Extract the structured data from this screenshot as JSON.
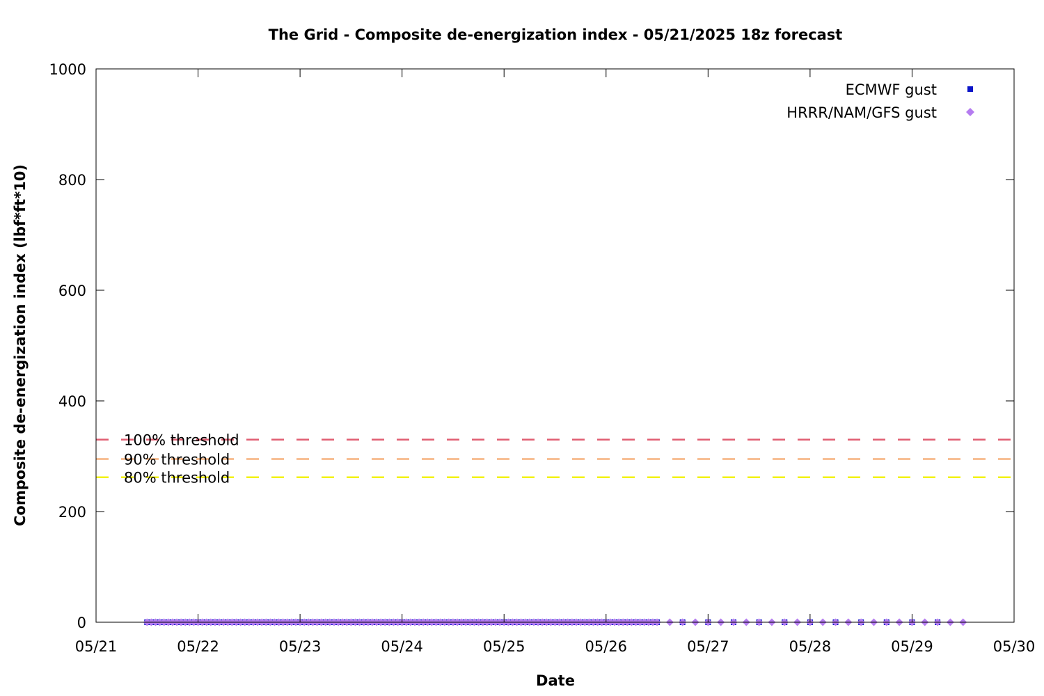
{
  "chart_data": {
    "type": "scatter",
    "title": "The Grid - Composite de-energization index - 05/21/2025 18z forecast",
    "xlabel": "Date",
    "ylabel": "Composite de-energization index (lbf*ft*10)",
    "x_unit": "days",
    "x_ticks": [
      "05/21",
      "05/22",
      "05/23",
      "05/24",
      "05/25",
      "05/26",
      "05/27",
      "05/28",
      "05/29",
      "05/30"
    ],
    "xlim": [
      "05/21",
      "05/30"
    ],
    "ylim": [
      0,
      1000
    ],
    "y_ticks": [
      0,
      200,
      400,
      600,
      800,
      1000
    ],
    "grid": false,
    "legend_position": "top-right",
    "thresholds": [
      {
        "label": "100% threshold",
        "value": 330,
        "color": "#e05c70"
      },
      {
        "label": "90% threshold",
        "value": 295,
        "color": "#f6b27e"
      },
      {
        "label": "80% threshold",
        "value": 262,
        "color": "#f2f20a"
      }
    ],
    "series": [
      {
        "name": "ECMWF gust",
        "marker": "square",
        "color": "#0a14c8",
        "dense_segment": {
          "start": "05/21 12z",
          "end": "05/26 12z",
          "step_hours": 1,
          "value": 0
        },
        "sparse_points": [
          {
            "x": "05/26 18z",
            "y": 0
          },
          {
            "x": "05/27 00z",
            "y": 0
          },
          {
            "x": "05/27 06z",
            "y": 0
          },
          {
            "x": "05/27 12z",
            "y": 0
          },
          {
            "x": "05/27 18z",
            "y": 0
          },
          {
            "x": "05/28 00z",
            "y": 0
          },
          {
            "x": "05/28 06z",
            "y": 0
          },
          {
            "x": "05/28 12z",
            "y": 0
          },
          {
            "x": "05/28 18z",
            "y": 0
          },
          {
            "x": "05/29 00z",
            "y": 0
          },
          {
            "x": "05/29 06z",
            "y": 0
          }
        ]
      },
      {
        "name": "HRRR/NAM/GFS gust",
        "marker": "diamond",
        "color": "#b57cf0",
        "dense_segment": {
          "start": "05/21 12z",
          "end": "05/26 12z",
          "step_hours": 1,
          "value": 0
        },
        "sparse_points": [
          {
            "x": "05/26 15z",
            "y": 0
          },
          {
            "x": "05/26 18z",
            "y": 0
          },
          {
            "x": "05/26 21z",
            "y": 0
          },
          {
            "x": "05/27 00z",
            "y": 0
          },
          {
            "x": "05/27 03z",
            "y": 0
          },
          {
            "x": "05/27 06z",
            "y": 0
          },
          {
            "x": "05/27 09z",
            "y": 0
          },
          {
            "x": "05/27 12z",
            "y": 0
          },
          {
            "x": "05/27 15z",
            "y": 0
          },
          {
            "x": "05/27 18z",
            "y": 0
          },
          {
            "x": "05/27 21z",
            "y": 0
          },
          {
            "x": "05/28 00z",
            "y": 0
          },
          {
            "x": "05/28 03z",
            "y": 0
          },
          {
            "x": "05/28 06z",
            "y": 0
          },
          {
            "x": "05/28 09z",
            "y": 0
          },
          {
            "x": "05/28 12z",
            "y": 0
          },
          {
            "x": "05/28 15z",
            "y": 0
          },
          {
            "x": "05/28 18z",
            "y": 0
          },
          {
            "x": "05/28 21z",
            "y": 0
          },
          {
            "x": "05/29 00z",
            "y": 0
          },
          {
            "x": "05/29 03z",
            "y": 0
          },
          {
            "x": "05/29 06z",
            "y": 0
          },
          {
            "x": "05/29 09z",
            "y": 0
          },
          {
            "x": "05/29 12z",
            "y": 0
          }
        ]
      }
    ]
  }
}
